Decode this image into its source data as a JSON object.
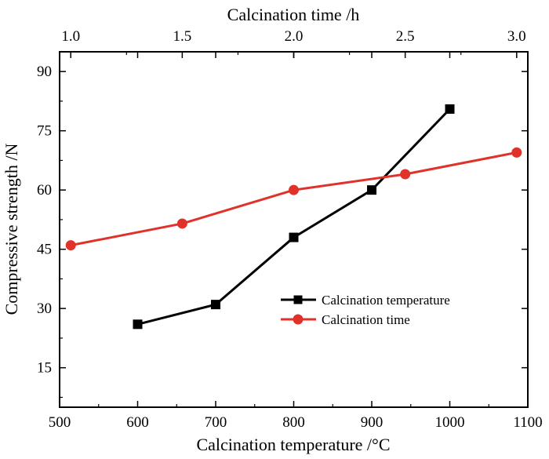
{
  "chart_data": {
    "type": "line",
    "title": "",
    "xlabel": "Calcination temperature /°C",
    "x2label": "Calcination time /h",
    "ylabel": "Compressive strength /N",
    "xlim": [
      500,
      1100
    ],
    "x2lim": [
      0.95,
      3.05
    ],
    "ylim": [
      5,
      95
    ],
    "x_ticks": [
      "500",
      "600",
      "700",
      "800",
      "900",
      "1000",
      "1100"
    ],
    "x2_ticks": [
      "1.0",
      "1.5",
      "2.0",
      "2.5",
      "3.0"
    ],
    "y_ticks": [
      "15",
      "30",
      "45",
      "60",
      "75",
      "90"
    ],
    "x_tick_values": [
      500,
      600,
      700,
      800,
      900,
      1000,
      1100
    ],
    "x2_tick_values": [
      1.0,
      1.5,
      2.0,
      2.5,
      3.0
    ],
    "y_tick_values": [
      15,
      30,
      45,
      60,
      75,
      90
    ],
    "grid": false,
    "legend_position": "lower-right",
    "series": [
      {
        "name": "Calcination temperature",
        "axis": "bottom",
        "color": "#000000",
        "marker": "square",
        "x": [
          600,
          700,
          800,
          900,
          1000
        ],
        "values": [
          26,
          31,
          48,
          60,
          80.5
        ]
      },
      {
        "name": "Calcination time",
        "axis": "top",
        "color": "#e0312b",
        "marker": "circle",
        "x": [
          1.0,
          1.5,
          2.0,
          2.5,
          3.0
        ],
        "values": [
          46,
          51.5,
          60,
          64,
          69.5
        ]
      }
    ]
  }
}
